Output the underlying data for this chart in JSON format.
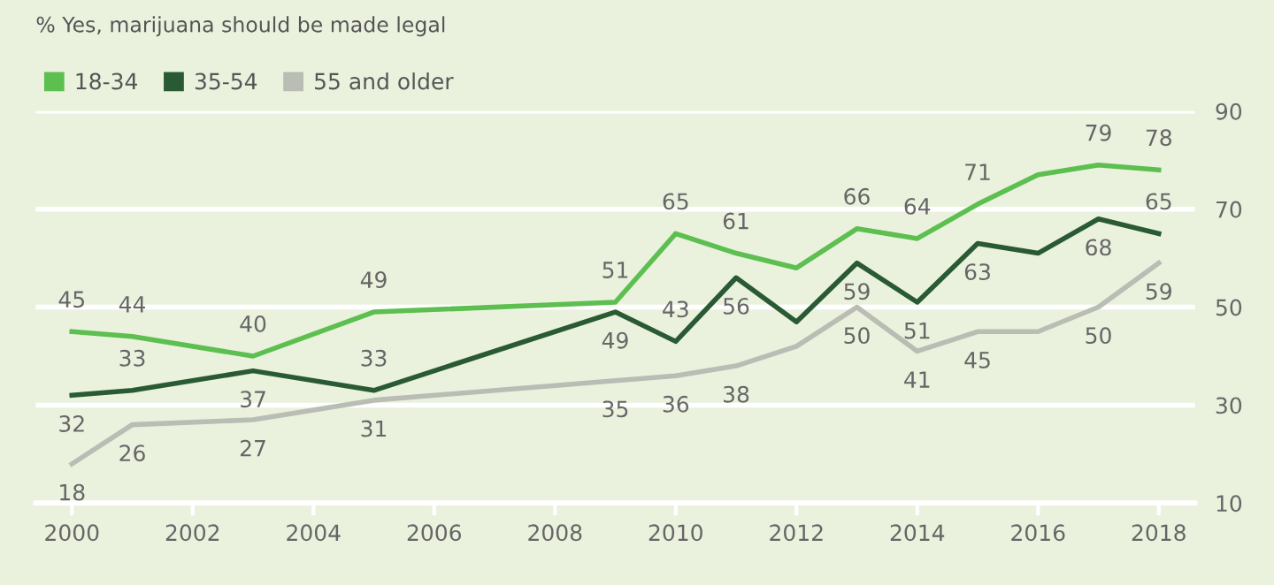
{
  "chart_data": {
    "type": "line",
    "title": "% Yes, marijuana should be made legal",
    "x": [
      2000,
      2001,
      2003,
      2005,
      2009,
      2010,
      2011,
      2012,
      2013,
      2014,
      2015,
      2016,
      2017,
      2018
    ],
    "series": [
      {
        "name": "18-34",
        "color": "#5cbf4f",
        "values": [
          45,
          44,
          40,
          49,
          51,
          65,
          61,
          58,
          66,
          64,
          71,
          77,
          79,
          78
        ],
        "value_labels": [
          "45",
          "44",
          "40",
          "49",
          "51",
          "65",
          "61",
          null,
          "66",
          "64",
          "71",
          null,
          "79",
          "78"
        ]
      },
      {
        "name": "35-54",
        "color": "#2a5a34",
        "values": [
          32,
          33,
          37,
          33,
          49,
          43,
          56,
          47,
          59,
          51,
          63,
          61,
          68,
          65
        ],
        "value_labels": [
          "32",
          "33",
          "37",
          "33",
          "49",
          "43",
          "56",
          null,
          "59",
          "51",
          "63",
          null,
          "68",
          "65"
        ]
      },
      {
        "name": "55 and older",
        "color": "#b9bdb4",
        "values": [
          18,
          26,
          27,
          31,
          35,
          36,
          38,
          42,
          50,
          41,
          45,
          45,
          50,
          59
        ],
        "value_labels": [
          "18",
          "26",
          "27",
          "31",
          "35",
          "36",
          "38",
          null,
          "50",
          "41",
          "45",
          null,
          "50",
          "59"
        ]
      }
    ],
    "xlim": [
      1999.4,
      2018.6
    ],
    "xticks": [
      2000,
      2002,
      2004,
      2006,
      2008,
      2010,
      2012,
      2014,
      2016,
      2018
    ],
    "ylim": [
      10,
      90
    ],
    "yticks": [
      10,
      30,
      50,
      70,
      90
    ],
    "grid": "y",
    "legend": "top left",
    "marker": "none",
    "line_style": "solid"
  }
}
